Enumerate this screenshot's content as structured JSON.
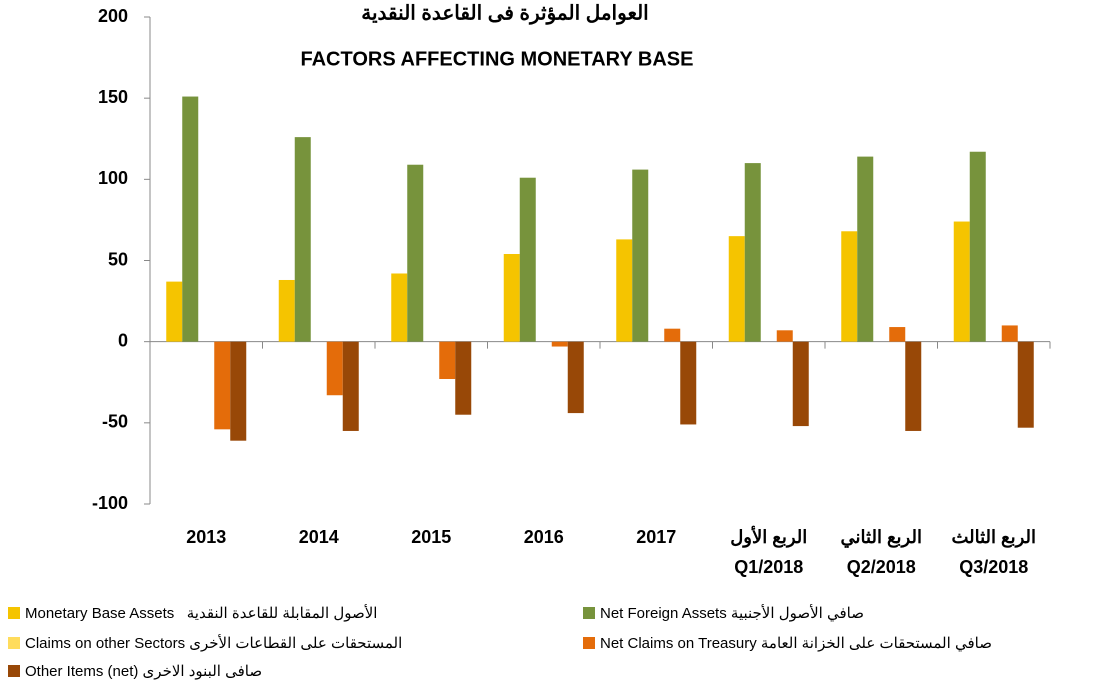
{
  "chart_data": {
    "type": "bar",
    "title": "العوامل المؤثرة فى القاعدة النقدية",
    "subtitle": "FACTORS AFFECTING MONETARY BASE",
    "categories": [
      "2013",
      "2014",
      "2015",
      "2016",
      "2017",
      "الربع الأول\nQ1/2018",
      "الربع الثاني\nQ2/2018",
      "الربع الثالث\nQ3/2018"
    ],
    "series": [
      {
        "name": "Monetary Base Assets   الأصول المقابلة للقاعدة النقدية",
        "color": "#f5c400",
        "values": [
          37,
          38,
          42,
          54,
          63,
          65,
          68,
          74
        ]
      },
      {
        "name": "Net Foreign Assets صافي الأصول الأجنبية",
        "color": "#77933c",
        "values": [
          151,
          126,
          109,
          101,
          106,
          110,
          114,
          117
        ]
      },
      {
        "name": "Claims on other Sectors المستحقات على القطاعات الأخرى",
        "color": "#ffdc5c",
        "values": [
          0,
          0,
          0,
          0,
          0,
          0,
          0,
          0
        ]
      },
      {
        "name": "Net Claims on Treasury صافي المستحقات على الخزانة العامة",
        "color": "#e46c0a",
        "values": [
          -54,
          -33,
          -23,
          -3,
          8,
          7,
          9,
          10
        ]
      },
      {
        "name": "Other Items (net) صافى البنود الاخرى",
        "color": "#984807",
        "values": [
          -61,
          -55,
          -45,
          -44,
          -51,
          -52,
          -55,
          -53
        ]
      }
    ],
    "ylim": [
      -100,
      200
    ],
    "yticks": [
      -100,
      -50,
      0,
      50,
      100,
      150,
      200
    ],
    "grid": false
  }
}
